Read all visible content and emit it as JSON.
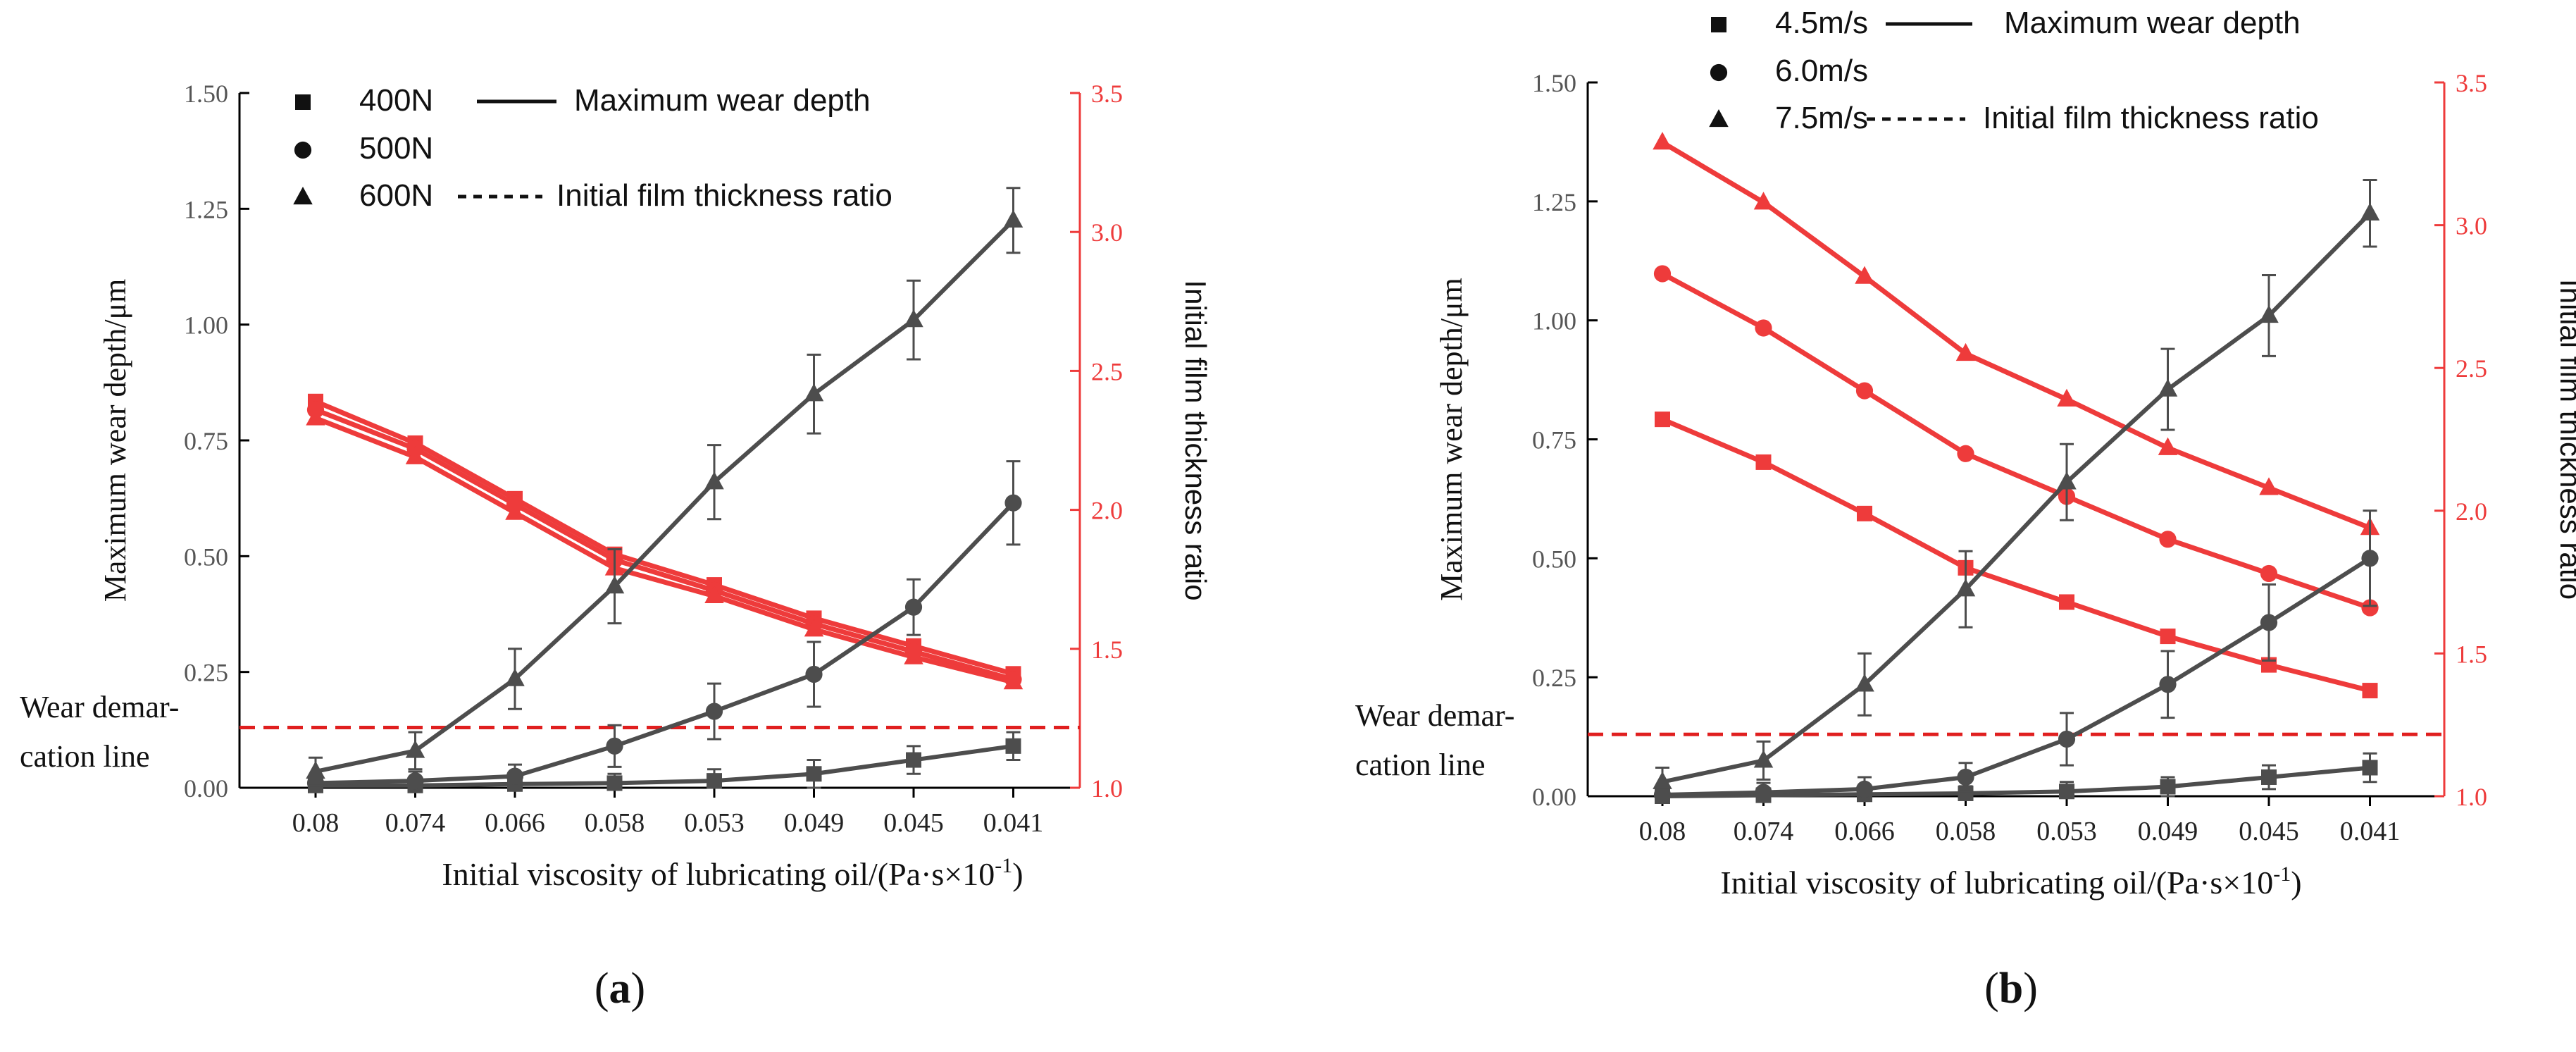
{
  "colors": {
    "wear": "#4d4d4d",
    "film": "#ee3b3b",
    "demarcation": "#e01f1f",
    "axis": "#000000",
    "right_axis": "#ee3b3b",
    "left_tick": "#555555"
  },
  "chart_data": [
    {
      "id": "a",
      "type": "line",
      "panel_label": "(a)",
      "panel_letter": "a",
      "categories": [
        "0.08",
        "0.074",
        "0.066",
        "0.058",
        "0.053",
        "0.049",
        "0.045",
        "0.041"
      ],
      "xlabel_main": "Initial viscosity of lubricating oil/(Pa·s×10",
      "xlabel_sup": "-1",
      "xlabel_end": ")",
      "ylabel_left": "Maximum wear depth/μm",
      "ylabel_right": "Initial film thickness ratio",
      "ylim_left": [
        0,
        1.5
      ],
      "ylim_right": [
        1.0,
        3.5
      ],
      "yticks_left": [
        "0.00",
        "0.25",
        "0.50",
        "0.75",
        "1.00",
        "1.25",
        "1.50"
      ],
      "yticks_right": [
        "1.0",
        "1.5",
        "2.0",
        "2.5",
        "3.0",
        "3.5"
      ],
      "demarcation": {
        "value": 0.13,
        "label_line1": "Wear demar-",
        "label_line2": "cation line"
      },
      "legend": {
        "entries": [
          {
            "marker": "square",
            "label": "400N"
          },
          {
            "marker": "circle",
            "label": "500N"
          },
          {
            "marker": "triangle",
            "label": "600N"
          }
        ],
        "line_solid": "Maximum wear depth",
        "line_dashed": "Initial film thickness ratio"
      },
      "wear_series": [
        {
          "name": "400N",
          "marker": "square",
          "values": [
            0.005,
            0.005,
            0.008,
            0.01,
            0.015,
            0.03,
            0.06,
            0.09
          ],
          "errors": [
            0.015,
            0.015,
            0.015,
            0.02,
            0.025,
            0.03,
            0.03,
            0.03
          ]
        },
        {
          "name": "500N",
          "marker": "circle",
          "values": [
            0.01,
            0.015,
            0.025,
            0.09,
            0.165,
            0.245,
            0.39,
            0.615
          ],
          "errors": [
            0.015,
            0.02,
            0.025,
            0.045,
            0.06,
            0.07,
            0.06,
            0.09
          ]
        },
        {
          "name": "600N",
          "marker": "triangle",
          "values": [
            0.035,
            0.08,
            0.235,
            0.435,
            0.66,
            0.85,
            1.01,
            1.225
          ],
          "errors": [
            0.03,
            0.04,
            0.065,
            0.08,
            0.08,
            0.085,
            0.085,
            0.07
          ]
        }
      ],
      "film_series": [
        {
          "name": "400N",
          "marker": "square",
          "values": [
            2.39,
            2.24,
            2.04,
            1.84,
            1.73,
            1.61,
            1.51,
            1.41
          ]
        },
        {
          "name": "500N",
          "marker": "circle",
          "values": [
            2.36,
            2.22,
            2.02,
            1.82,
            1.71,
            1.59,
            1.49,
            1.39
          ]
        },
        {
          "name": "600N",
          "marker": "triangle",
          "values": [
            2.33,
            2.19,
            1.99,
            1.79,
            1.69,
            1.57,
            1.47,
            1.38
          ]
        }
      ]
    },
    {
      "id": "b",
      "type": "line",
      "panel_label": "(b)",
      "panel_letter": "b",
      "categories": [
        "0.08",
        "0.074",
        "0.066",
        "0.058",
        "0.053",
        "0.049",
        "0.045",
        "0.041"
      ],
      "xlabel_main": "Initial viscosity of lubricating oil/(Pa·s×10",
      "xlabel_sup": "-1",
      "xlabel_end": ")",
      "ylabel_left": "Maximum wear depth/μm",
      "ylabel_right": "Initial film thickness ratio",
      "ylim_left": [
        0,
        1.5
      ],
      "ylim_right": [
        1.0,
        3.5
      ],
      "yticks_left": [
        "0.00",
        "0.25",
        "0.50",
        "0.75",
        "1.00",
        "1.25",
        "1.50"
      ],
      "yticks_right": [
        "1.0",
        "1.5",
        "2.0",
        "2.5",
        "3.0",
        "3.5"
      ],
      "demarcation": {
        "value": 0.13,
        "label_line1": "Wear demar-",
        "label_line2": "cation line"
      },
      "legend": {
        "entries": [
          {
            "marker": "square",
            "label": "4.5m/s"
          },
          {
            "marker": "circle",
            "label": "6.0m/s"
          },
          {
            "marker": "triangle",
            "label": "7.5m/s"
          }
        ],
        "line_solid": "Maximum wear depth",
        "line_dashed": "Initial film thickness ratio"
      },
      "wear_series": [
        {
          "name": "4.5m/s",
          "marker": "square",
          "values": [
            0.0,
            0.002,
            0.004,
            0.006,
            0.01,
            0.02,
            0.04,
            0.06
          ],
          "errors": [
            0.015,
            0.015,
            0.015,
            0.015,
            0.02,
            0.02,
            0.025,
            0.03
          ]
        },
        {
          "name": "6.0m/s",
          "marker": "circle",
          "values": [
            0.003,
            0.008,
            0.015,
            0.04,
            0.12,
            0.235,
            0.365,
            0.5
          ],
          "errors": [
            0.015,
            0.02,
            0.025,
            0.03,
            0.055,
            0.07,
            0.08,
            0.1
          ]
        },
        {
          "name": "7.5m/s",
          "marker": "triangle",
          "values": [
            0.03,
            0.075,
            0.235,
            0.435,
            0.66,
            0.855,
            1.01,
            1.225
          ],
          "errors": [
            0.03,
            0.04,
            0.065,
            0.08,
            0.08,
            0.085,
            0.085,
            0.07
          ]
        }
      ],
      "film_series": [
        {
          "name": "4.5m/s",
          "marker": "square",
          "values": [
            2.32,
            2.17,
            1.99,
            1.8,
            1.68,
            1.56,
            1.46,
            1.37
          ]
        },
        {
          "name": "6.0m/s",
          "marker": "circle",
          "values": [
            2.83,
            2.64,
            2.42,
            2.2,
            2.05,
            1.9,
            1.78,
            1.66
          ]
        },
        {
          "name": "7.5m/s",
          "marker": "triangle",
          "values": [
            3.29,
            3.08,
            2.82,
            2.55,
            2.39,
            2.22,
            2.08,
            1.94
          ]
        }
      ]
    }
  ]
}
